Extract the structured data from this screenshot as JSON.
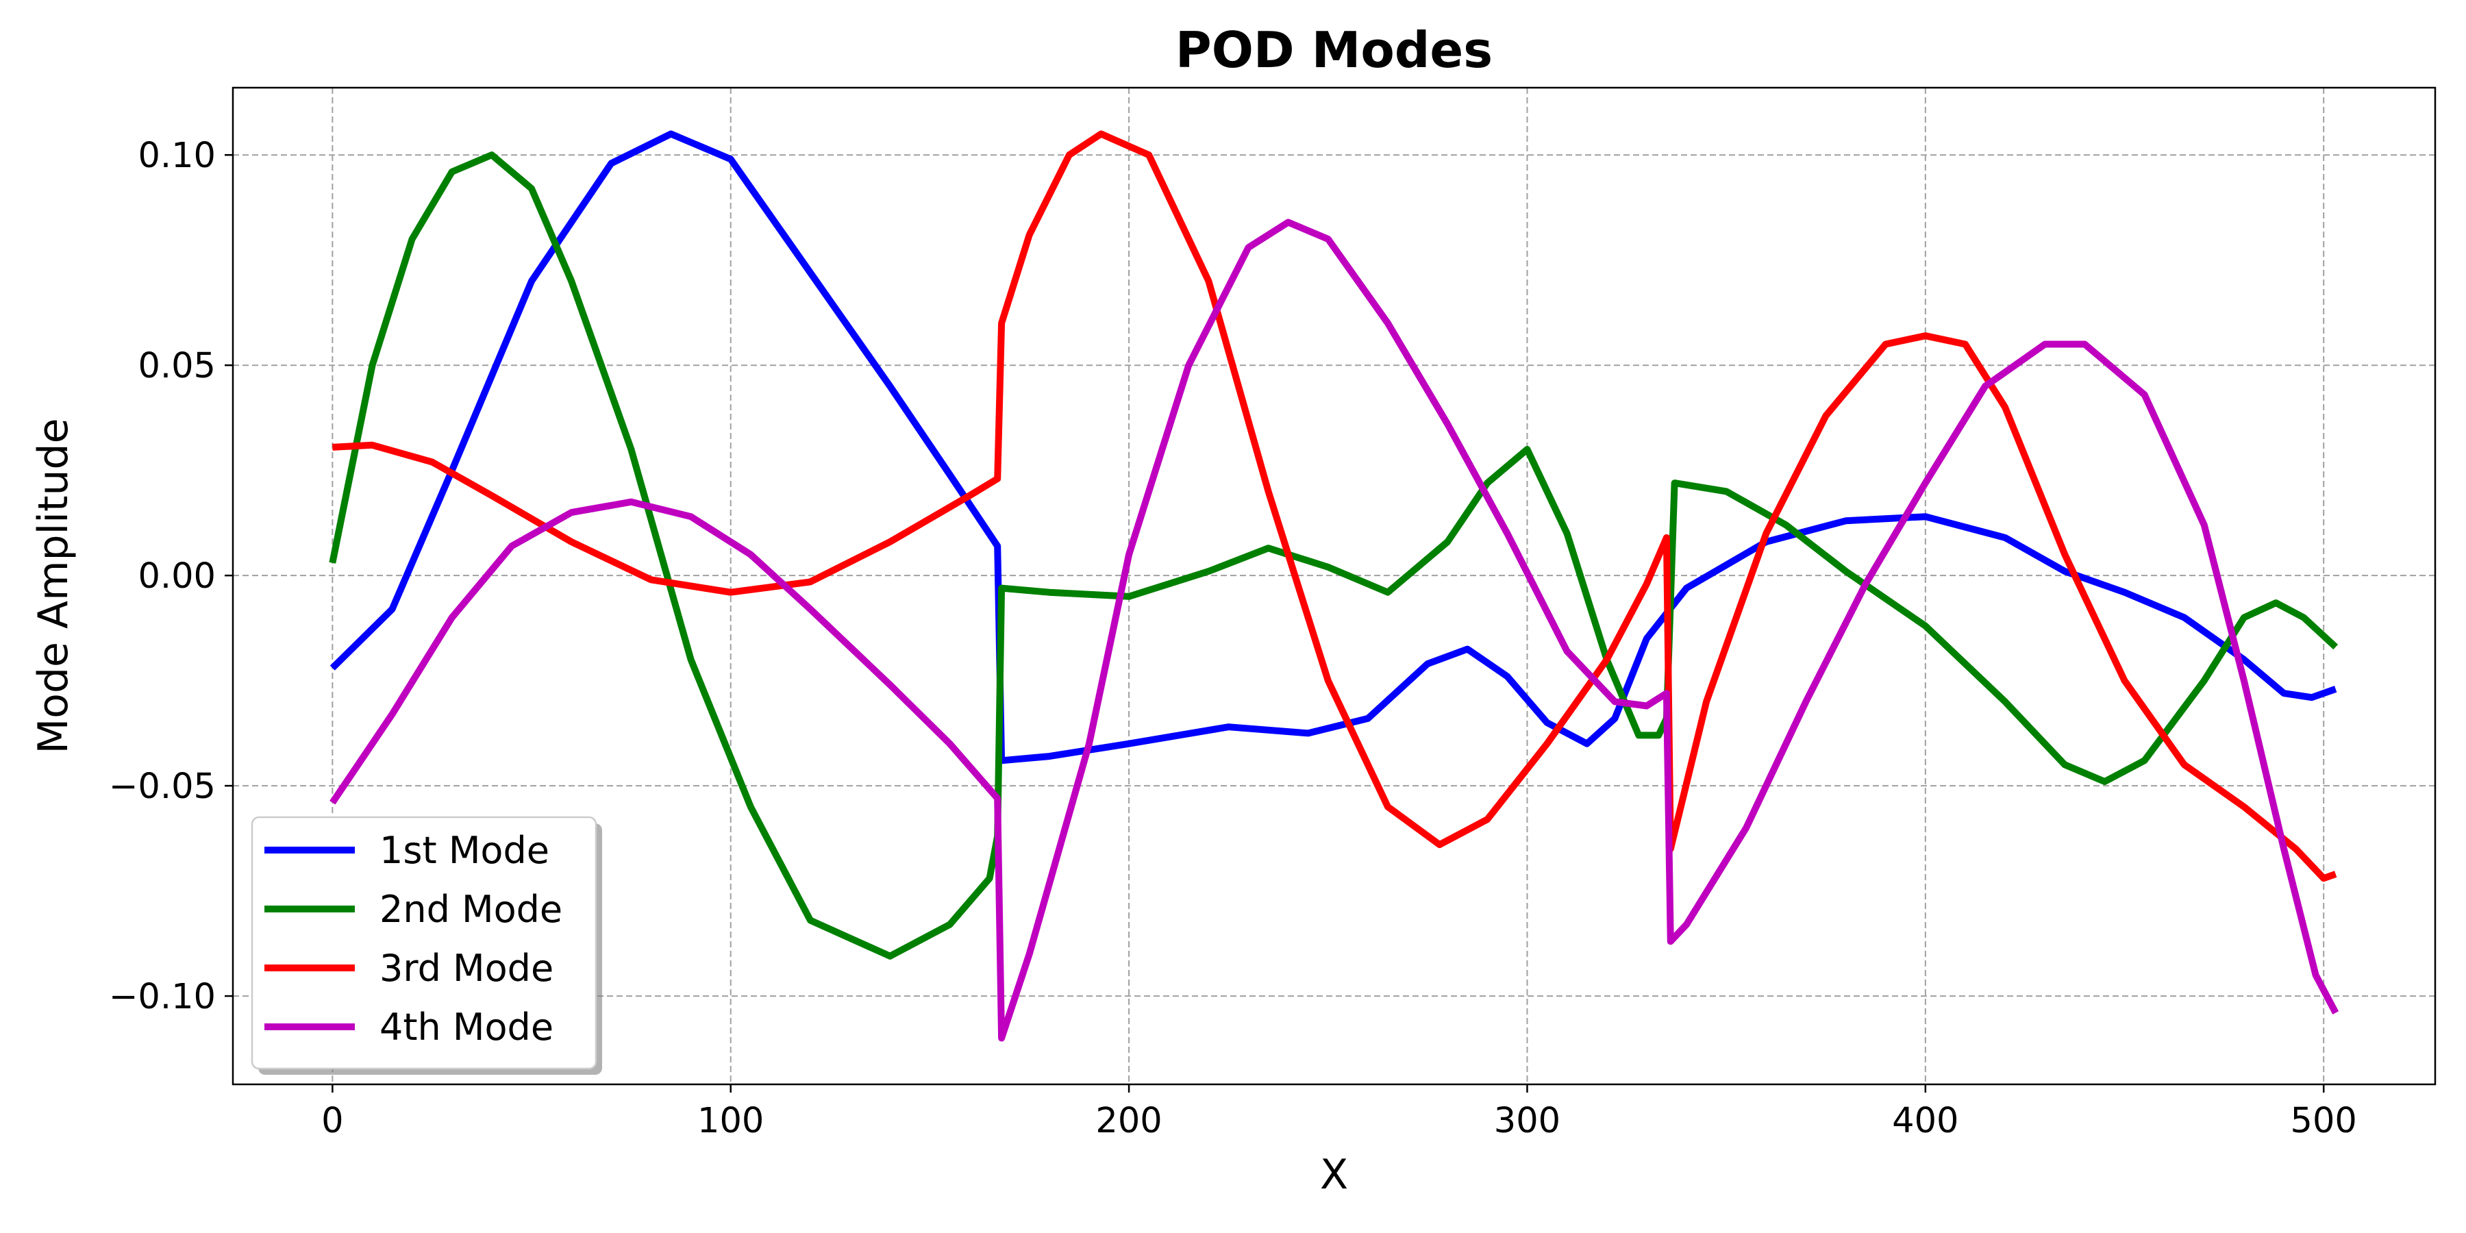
{
  "chart_data": {
    "type": "line",
    "title": "POD Modes",
    "xlabel": "X",
    "ylabel": "Mode Amplitude",
    "xlim": [
      -25,
      528
    ],
    "ylim": [
      -0.121,
      0.116
    ],
    "x_ticks": [
      0,
      100,
      200,
      300,
      400,
      500
    ],
    "x_tick_labels": [
      "0",
      "100",
      "200",
      "300",
      "400",
      "500"
    ],
    "y_ticks": [
      -0.1,
      -0.05,
      0.0,
      0.05,
      0.1
    ],
    "y_tick_labels": [
      "−0.10",
      "−0.05",
      "0.00",
      "0.05",
      "0.10"
    ],
    "grid": true,
    "legend_position": "lower-left",
    "series": [
      {
        "name": "1st Mode",
        "color": "#0000ff",
        "points": [
          [
            0,
            -0.022
          ],
          [
            15,
            -0.008
          ],
          [
            30,
            0.025
          ],
          [
            50,
            0.07
          ],
          [
            70,
            0.098
          ],
          [
            85,
            0.105
          ],
          [
            100,
            0.099
          ],
          [
            120,
            0.072
          ],
          [
            140,
            0.045
          ],
          [
            155,
            0.024
          ],
          [
            167,
            0.007
          ],
          [
            168,
            -0.044
          ],
          [
            180,
            -0.043
          ],
          [
            200,
            -0.04
          ],
          [
            225,
            -0.036
          ],
          [
            245,
            -0.0375
          ],
          [
            260,
            -0.034
          ],
          [
            275,
            -0.021
          ],
          [
            285,
            -0.0175
          ],
          [
            295,
            -0.024
          ],
          [
            305,
            -0.035
          ],
          [
            315,
            -0.04
          ],
          [
            322,
            -0.034
          ],
          [
            330,
            -0.015
          ],
          [
            340,
            -0.003
          ],
          [
            360,
            0.008
          ],
          [
            380,
            0.013
          ],
          [
            400,
            0.014
          ],
          [
            420,
            0.009
          ],
          [
            435,
            0.001
          ],
          [
            450,
            -0.004
          ],
          [
            465,
            -0.01
          ],
          [
            480,
            -0.02
          ],
          [
            490,
            -0.028
          ],
          [
            497,
            -0.029
          ],
          [
            503,
            -0.027
          ]
        ]
      },
      {
        "name": "2nd Mode",
        "color": "#008000",
        "points": [
          [
            0,
            0.003
          ],
          [
            10,
            0.05
          ],
          [
            20,
            0.08
          ],
          [
            30,
            0.096
          ],
          [
            40,
            0.1
          ],
          [
            50,
            0.092
          ],
          [
            60,
            0.07
          ],
          [
            75,
            0.03
          ],
          [
            90,
            -0.02
          ],
          [
            105,
            -0.055
          ],
          [
            120,
            -0.082
          ],
          [
            140,
            -0.0905
          ],
          [
            155,
            -0.083
          ],
          [
            165,
            -0.072
          ],
          [
            167,
            -0.062
          ],
          [
            168,
            -0.003
          ],
          [
            180,
            -0.004
          ],
          [
            200,
            -0.005
          ],
          [
            220,
            0.001
          ],
          [
            235,
            0.0065
          ],
          [
            250,
            0.002
          ],
          [
            265,
            -0.004
          ],
          [
            280,
            0.008
          ],
          [
            290,
            0.022
          ],
          [
            300,
            0.03
          ],
          [
            310,
            0.01
          ],
          [
            320,
            -0.02
          ],
          [
            328,
            -0.038
          ],
          [
            333,
            -0.038
          ],
          [
            335,
            -0.034
          ],
          [
            337,
            0.022
          ],
          [
            350,
            0.02
          ],
          [
            365,
            0.012
          ],
          [
            380,
            0.001
          ],
          [
            400,
            -0.012
          ],
          [
            420,
            -0.03
          ],
          [
            435,
            -0.045
          ],
          [
            445,
            -0.049
          ],
          [
            455,
            -0.044
          ],
          [
            470,
            -0.025
          ],
          [
            480,
            -0.01
          ],
          [
            488,
            -0.0065
          ],
          [
            495,
            -0.01
          ],
          [
            503,
            -0.017
          ]
        ]
      },
      {
        "name": "3rd Mode",
        "color": "#ff0000",
        "points": [
          [
            0,
            0.0305
          ],
          [
            10,
            0.031
          ],
          [
            25,
            0.027
          ],
          [
            40,
            0.019
          ],
          [
            60,
            0.008
          ],
          [
            80,
            -0.001
          ],
          [
            100,
            -0.004
          ],
          [
            120,
            -0.0015
          ],
          [
            140,
            0.008
          ],
          [
            160,
            0.019
          ],
          [
            167,
            0.023
          ],
          [
            168,
            0.06
          ],
          [
            175,
            0.081
          ],
          [
            185,
            0.1
          ],
          [
            193,
            0.105
          ],
          [
            205,
            0.1
          ],
          [
            220,
            0.07
          ],
          [
            235,
            0.02
          ],
          [
            250,
            -0.025
          ],
          [
            265,
            -0.055
          ],
          [
            278,
            -0.064
          ],
          [
            290,
            -0.058
          ],
          [
            305,
            -0.04
          ],
          [
            320,
            -0.02
          ],
          [
            330,
            -0.002
          ],
          [
            335,
            0.009
          ],
          [
            336,
            -0.065
          ],
          [
            345,
            -0.03
          ],
          [
            360,
            0.01
          ],
          [
            375,
            0.038
          ],
          [
            390,
            0.055
          ],
          [
            400,
            0.057
          ],
          [
            410,
            0.055
          ],
          [
            420,
            0.04
          ],
          [
            435,
            0.005
          ],
          [
            450,
            -0.025
          ],
          [
            465,
            -0.045
          ],
          [
            480,
            -0.055
          ],
          [
            493,
            -0.065
          ],
          [
            500,
            -0.072
          ],
          [
            503,
            -0.071
          ]
        ]
      },
      {
        "name": "4th Mode",
        "color": "#bf00bf",
        "points": [
          [
            0,
            -0.054
          ],
          [
            15,
            -0.033
          ],
          [
            30,
            -0.01
          ],
          [
            45,
            0.007
          ],
          [
            60,
            0.015
          ],
          [
            75,
            0.0175
          ],
          [
            90,
            0.014
          ],
          [
            105,
            0.005
          ],
          [
            120,
            -0.008
          ],
          [
            140,
            -0.026
          ],
          [
            155,
            -0.04
          ],
          [
            167,
            -0.053
          ],
          [
            168,
            -0.11
          ],
          [
            175,
            -0.09
          ],
          [
            190,
            -0.04
          ],
          [
            200,
            0.005
          ],
          [
            215,
            0.05
          ],
          [
            230,
            0.078
          ],
          [
            240,
            0.084
          ],
          [
            250,
            0.08
          ],
          [
            265,
            0.06
          ],
          [
            280,
            0.036
          ],
          [
            295,
            0.01
          ],
          [
            310,
            -0.018
          ],
          [
            322,
            -0.03
          ],
          [
            330,
            -0.031
          ],
          [
            335,
            -0.028
          ],
          [
            336,
            -0.087
          ],
          [
            340,
            -0.083
          ],
          [
            355,
            -0.06
          ],
          [
            370,
            -0.03
          ],
          [
            385,
            -0.002
          ],
          [
            400,
            0.022
          ],
          [
            415,
            0.045
          ],
          [
            430,
            0.055
          ],
          [
            440,
            0.055
          ],
          [
            455,
            0.043
          ],
          [
            470,
            0.012
          ],
          [
            480,
            -0.025
          ],
          [
            490,
            -0.065
          ],
          [
            498,
            -0.095
          ],
          [
            503,
            -0.104
          ]
        ]
      }
    ]
  }
}
